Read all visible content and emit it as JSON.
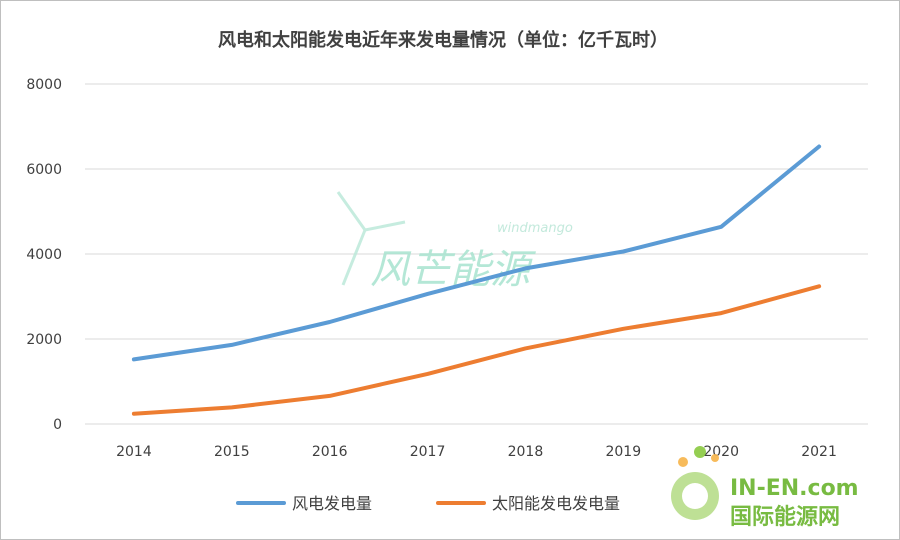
{
  "chart_data": {
    "type": "line",
    "title": "风电和太阳能发电近年来发电量情况（单位：亿千瓦时）",
    "categories": [
      "2014",
      "2015",
      "2016",
      "2017",
      "2018",
      "2019",
      "2020",
      "2021"
    ],
    "yticks": [
      "0",
      "2000",
      "4000",
      "6000",
      "8000"
    ],
    "ylim": [
      0,
      8000
    ],
    "grid": true,
    "legend_position": "bottom",
    "series": [
      {
        "name": "风电发电量",
        "color": "#5b9bd5",
        "values": [
          1520,
          1860,
          2400,
          3060,
          3660,
          4060,
          4640,
          6530
        ]
      },
      {
        "name": "太阳能发电发电量",
        "color": "#ed7d31",
        "values": [
          240,
          390,
          660,
          1180,
          1780,
          2240,
          2610,
          3240
        ]
      }
    ]
  },
  "watermarks": {
    "center_main": "风芒能源",
    "center_small": "windmango",
    "brand_en": "IN-EN.com",
    "brand_cn": "国际能源网"
  }
}
